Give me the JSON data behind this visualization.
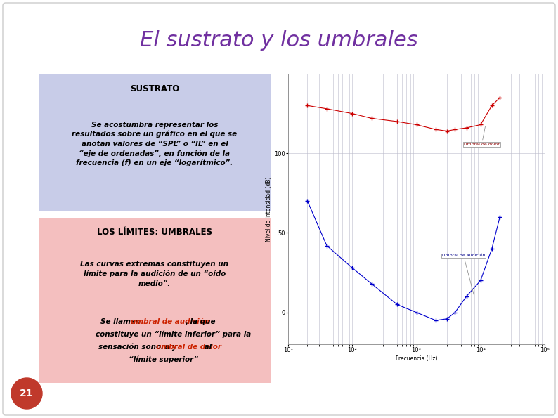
{
  "title": "El sustrato y los umbrales",
  "title_color": "#7030A0",
  "title_fontsize": 22,
  "bg_color": "#FFFFFF",
  "box1_bg": "#C8CCE8",
  "box1_title": "SUSTRATO",
  "box1_text": "Se acostumbra representar los\nresultados sobre un gráfico en el que se\nanotan valores de “SPL” o “IL” en el\n“eje de ordenadas”, en función de la\nfrecuencia (f) en un eje “logarítmico”.",
  "box2_bg": "#F4BFBF",
  "box2_title": "LOS LÍMITES: UMBRALES",
  "box2_text1": "Las curvas extremas constituyen un\nlímite para la audición de un “oído\nmedio”.",
  "page_num": "21",
  "page_num_bg": "#C0392B",
  "page_num_color": "#FFFFFF",
  "red_curve_x": [
    20,
    40,
    100,
    200,
    500,
    1000,
    2000,
    3000,
    4000,
    6000,
    10000,
    15000,
    20000
  ],
  "red_curve_y": [
    130,
    128,
    125,
    122,
    120,
    118,
    115,
    114,
    115,
    116,
    118,
    130,
    135
  ],
  "red_label": "Umbral de dolor",
  "blue_curve_x": [
    20,
    40,
    100,
    200,
    500,
    1000,
    2000,
    3000,
    4000,
    6000,
    10000,
    15000,
    20000
  ],
  "blue_curve_y": [
    70,
    42,
    28,
    18,
    5,
    0,
    -5,
    -4,
    0,
    10,
    20,
    40,
    60
  ],
  "blue_label": "Umbral de audición",
  "ylabel": "Nivel de intensidad (dB)",
  "xlabel": "Frecuencia (Hz)",
  "ylim": [
    -20,
    150
  ],
  "ytick_vals": [
    0,
    50,
    100
  ],
  "xlim_log": [
    10,
    100000
  ],
  "xtick_labels": [
    "10¹",
    "10²",
    "10³",
    "10⁴",
    "10⁵"
  ],
  "xtick_values": [
    10,
    100,
    1000,
    10000,
    100000
  ]
}
